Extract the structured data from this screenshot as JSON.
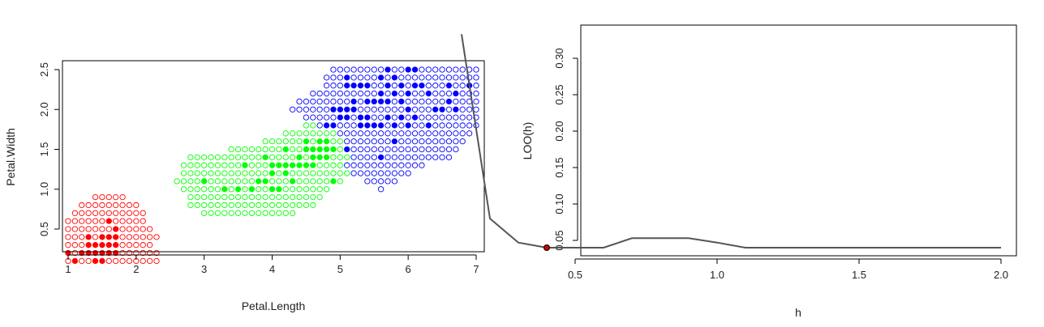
{
  "chart_data": [
    {
      "type": "scatter",
      "title": "",
      "xlabel": "Petal.Length",
      "ylabel": "Petal.Width",
      "xlim": [
        0.8,
        7.25
      ],
      "ylim": [
        0.0,
        2.6
      ],
      "xticks": [
        "1",
        "2",
        "3",
        "4",
        "5",
        "6",
        "7"
      ],
      "yticks": [
        "0.5",
        "1.0",
        "1.5",
        "2.0",
        "2.5"
      ],
      "grid": false,
      "legend": "none",
      "grid_step": 0.1,
      "classes": [
        {
          "color": "#ff0000",
          "region_rows": [
            {
              "y": 0.1,
              "x_from": 1.0,
              "x_to": 2.3
            },
            {
              "y": 0.2,
              "x_from": 1.0,
              "x_to": 2.3
            },
            {
              "y": 0.3,
              "x_from": 1.0,
              "x_to": 2.2
            },
            {
              "y": 0.4,
              "x_from": 1.0,
              "x_to": 2.3
            },
            {
              "y": 0.5,
              "x_from": 1.0,
              "x_to": 2.2
            },
            {
              "y": 0.6,
              "x_from": 1.0,
              "x_to": 2.1
            },
            {
              "y": 0.7,
              "x_from": 1.1,
              "x_to": 2.1
            },
            {
              "y": 0.8,
              "x_from": 1.2,
              "x_to": 2.0
            },
            {
              "y": 0.9,
              "x_from": 1.4,
              "x_to": 1.8
            }
          ],
          "observations": [
            [
              1.0,
              0.2
            ],
            [
              1.1,
              0.1
            ],
            [
              1.2,
              0.2
            ],
            [
              1.3,
              0.2
            ],
            [
              1.4,
              0.2
            ],
            [
              1.5,
              0.2
            ],
            [
              1.6,
              0.2
            ],
            [
              1.7,
              0.2
            ],
            [
              1.4,
              0.1
            ],
            [
              1.5,
              0.1
            ],
            [
              1.3,
              0.3
            ],
            [
              1.4,
              0.3
            ],
            [
              1.5,
              0.3
            ],
            [
              1.6,
              0.3
            ],
            [
              1.7,
              0.3
            ],
            [
              1.3,
              0.4
            ],
            [
              1.5,
              0.4
            ],
            [
              1.6,
              0.4
            ],
            [
              1.7,
              0.4
            ],
            [
              1.7,
              0.5
            ],
            [
              1.6,
              0.6
            ],
            [
              1.4,
              0.1
            ]
          ]
        },
        {
          "color": "#00ff00",
          "region_rows": [
            {
              "y": 0.7,
              "x_from": 3.0,
              "x_to": 4.3
            },
            {
              "y": 0.8,
              "x_from": 2.8,
              "x_to": 4.6
            },
            {
              "y": 0.9,
              "x_from": 2.8,
              "x_to": 4.7
            },
            {
              "y": 1.0,
              "x_from": 2.7,
              "x_to": 4.8
            },
            {
              "y": 1.1,
              "x_from": 2.6,
              "x_to": 5.0
            },
            {
              "y": 1.2,
              "x_from": 2.7,
              "x_to": 5.1
            },
            {
              "y": 1.3,
              "x_from": 2.7,
              "x_to": 5.0
            },
            {
              "y": 1.4,
              "x_from": 2.8,
              "x_to": 5.1
            },
            {
              "y": 1.5,
              "x_from": 3.4,
              "x_to": 5.0
            },
            {
              "y": 1.6,
              "x_from": 3.9,
              "x_to": 5.0
            },
            {
              "y": 1.7,
              "x_from": 4.2,
              "x_to": 4.9
            },
            {
              "y": 1.8,
              "x_from": 4.5,
              "x_to": 4.6
            }
          ],
          "observations": [
            [
              3.0,
              1.1
            ],
            [
              3.3,
              1.0
            ],
            [
              3.5,
              1.0
            ],
            [
              3.7,
              1.0
            ],
            [
              3.8,
              1.1
            ],
            [
              3.9,
              1.1
            ],
            [
              4.0,
              1.0
            ],
            [
              4.1,
              1.0
            ],
            [
              4.2,
              1.3
            ],
            [
              4.3,
              1.3
            ],
            [
              4.4,
              1.3
            ],
            [
              4.5,
              1.3
            ],
            [
              4.6,
              1.3
            ],
            [
              4.7,
              1.4
            ],
            [
              4.8,
              1.4
            ],
            [
              4.9,
              1.5
            ],
            [
              5.0,
              1.7
            ],
            [
              4.0,
              1.2
            ],
            [
              4.1,
              1.3
            ],
            [
              4.5,
              1.5
            ],
            [
              4.6,
              1.5
            ],
            [
              4.7,
              1.5
            ],
            [
              4.8,
              1.5
            ],
            [
              4.4,
              1.4
            ],
            [
              4.2,
              1.2
            ],
            [
              3.6,
              1.3
            ],
            [
              3.9,
              1.4
            ],
            [
              4.3,
              1.1
            ],
            [
              4.5,
              1.6
            ],
            [
              4.7,
              1.6
            ],
            [
              4.8,
              1.6
            ],
            [
              4.6,
              1.4
            ],
            [
              4.2,
              1.5
            ],
            [
              4.0,
              1.3
            ],
            [
              4.9,
              1.1
            ]
          ]
        },
        {
          "color": "#0000ff",
          "region_rows": [
            {
              "y": 1.0,
              "x_from": 5.6,
              "x_to": 5.6
            },
            {
              "y": 1.1,
              "x_from": 5.4,
              "x_to": 5.8
            },
            {
              "y": 1.2,
              "x_from": 5.2,
              "x_to": 6.0
            },
            {
              "y": 1.3,
              "x_from": 5.1,
              "x_to": 6.2
            },
            {
              "y": 1.4,
              "x_from": 5.2,
              "x_to": 6.6
            },
            {
              "y": 1.5,
              "x_from": 5.1,
              "x_to": 6.7
            },
            {
              "y": 1.6,
              "x_from": 5.1,
              "x_to": 6.8
            },
            {
              "y": 1.7,
              "x_from": 5.0,
              "x_to": 6.9
            },
            {
              "y": 1.8,
              "x_from": 4.7,
              "x_to": 7.0
            },
            {
              "y": 1.9,
              "x_from": 4.5,
              "x_to": 7.0
            },
            {
              "y": 2.0,
              "x_from": 4.3,
              "x_to": 7.0
            },
            {
              "y": 2.1,
              "x_from": 4.4,
              "x_to": 7.0
            },
            {
              "y": 2.2,
              "x_from": 4.6,
              "x_to": 7.0
            },
            {
              "y": 2.3,
              "x_from": 4.8,
              "x_to": 7.0
            },
            {
              "y": 2.4,
              "x_from": 4.8,
              "x_to": 7.0
            },
            {
              "y": 2.5,
              "x_from": 4.9,
              "x_to": 7.0
            }
          ],
          "observations": [
            [
              6.0,
              2.5
            ],
            [
              5.1,
              1.9
            ],
            [
              5.9,
              2.1
            ],
            [
              5.6,
              1.8
            ],
            [
              5.8,
              2.2
            ],
            [
              6.6,
              2.1
            ],
            [
              4.5,
              1.7
            ],
            [
              6.3,
              1.8
            ],
            [
              5.8,
              1.8
            ],
            [
              6.1,
              2.5
            ],
            [
              5.1,
              2.0
            ],
            [
              5.3,
              1.9
            ],
            [
              5.5,
              2.1
            ],
            [
              5.0,
              2.0
            ],
            [
              5.1,
              2.4
            ],
            [
              5.3,
              2.3
            ],
            [
              5.5,
              1.8
            ],
            [
              6.7,
              2.2
            ],
            [
              6.9,
              2.3
            ],
            [
              5.0,
              1.5
            ],
            [
              5.7,
              2.3
            ],
            [
              4.9,
              2.0
            ],
            [
              6.7,
              2.0
            ],
            [
              4.9,
              1.8
            ],
            [
              5.7,
              2.1
            ],
            [
              6.0,
              1.8
            ],
            [
              4.8,
              1.8
            ],
            [
              5.6,
              2.1
            ],
            [
              5.8,
              1.6
            ],
            [
              6.1,
              1.9
            ],
            [
              6.4,
              2.0
            ],
            [
              5.6,
              2.2
            ],
            [
              5.1,
              1.5
            ],
            [
              5.6,
              1.4
            ],
            [
              6.1,
              2.3
            ],
            [
              5.6,
              2.4
            ],
            [
              5.5,
              1.8
            ],
            [
              5.4,
              2.1
            ],
            [
              5.1,
              2.3
            ],
            [
              5.9,
              2.3
            ],
            [
              5.7,
              2.5
            ],
            [
              5.2,
              2.3
            ],
            [
              5.0,
              1.9
            ],
            [
              5.2,
              2.0
            ],
            [
              5.4,
              2.3
            ],
            [
              6.2,
              2.3
            ],
            [
              6.5,
              2.0
            ],
            [
              6.0,
              2.2
            ],
            [
              5.4,
              1.9
            ],
            [
              5.2,
              2.1
            ],
            [
              5.0,
              1.6
            ],
            [
              6.6,
              2.3
            ],
            [
              5.4,
              1.8
            ],
            [
              5.8,
              2.4
            ],
            [
              6.3,
              2.2
            ],
            [
              6.0,
              2.0
            ],
            [
              5.3,
              1.8
            ],
            [
              5.7,
              1.9
            ],
            [
              5.9,
              1.9
            ]
          ]
        }
      ]
    },
    {
      "type": "line",
      "title": "",
      "xlabel": "h",
      "ylabel": "LOO(h)",
      "xlim": [
        0.05,
        2.05
      ],
      "ylim": [
        0.03,
        0.34
      ],
      "xticks": [
        "0.5",
        "1.0",
        "1.5",
        "2.0"
      ],
      "yticks": [
        "0.05",
        "0.10",
        "0.15",
        "0.20",
        "0.25",
        "0.30"
      ],
      "grid": false,
      "legend": "none",
      "series": [
        {
          "color": "#555555",
          "x": [
            0.1,
            0.2,
            0.3,
            0.4,
            0.5,
            0.6,
            0.7,
            0.8,
            0.9,
            1.0,
            1.1,
            1.2,
            1.3,
            1.4,
            1.5,
            1.6,
            1.7,
            1.8,
            1.9,
            2.0
          ],
          "y": [
            0.333,
            0.08,
            0.047,
            0.04,
            0.04,
            0.04,
            0.053,
            0.053,
            0.053,
            0.047,
            0.04,
            0.04,
            0.04,
            0.04,
            0.04,
            0.04,
            0.04,
            0.04,
            0.04,
            0.04
          ]
        }
      ],
      "highlight_point": {
        "x": 0.4,
        "y": 0.04,
        "color": "#cc0000"
      }
    }
  ]
}
